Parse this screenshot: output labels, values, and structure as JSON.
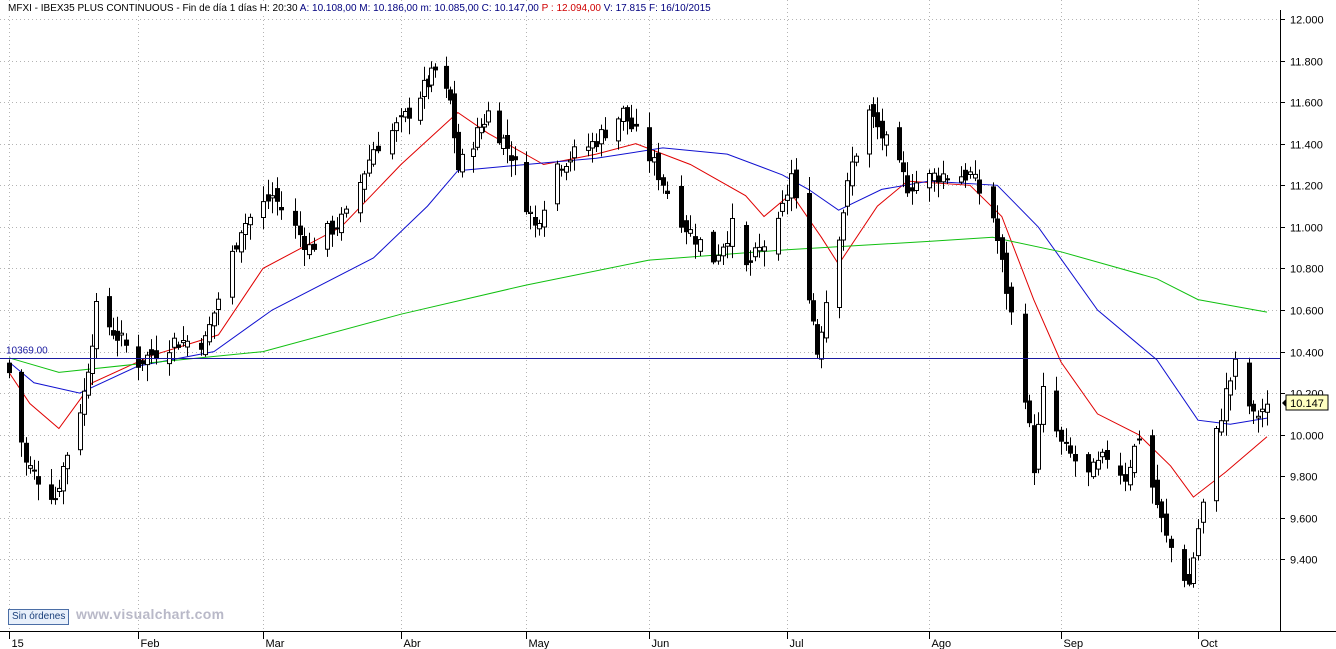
{
  "header": {
    "segments": [
      {
        "text": "MFXI - IBEX35 PLUS CONTINUOUS - Fin de día 1 días",
        "color": "#000000"
      },
      {
        "text": "H: 20:30",
        "color": "#000000"
      },
      {
        "text": "A: 10.108,00",
        "color": "#00007f"
      },
      {
        "text": "M: 10.186,00",
        "color": "#00007f"
      },
      {
        "text": "m: 10.085,00",
        "color": "#00007f"
      },
      {
        "text": "C: 10.147,00",
        "color": "#00007f"
      },
      {
        "text": "P : 12.094,00",
        "color": "#d00000"
      },
      {
        "text": "V: 17.815",
        "color": "#00007f"
      },
      {
        "text": "F: 16/10/2015",
        "color": "#00007f"
      }
    ]
  },
  "orders_button": "Sin órdenes",
  "watermark": "www.visualchart.com",
  "price_tag": "10.147",
  "colors": {
    "candle": "#000000",
    "ma_fast": "#e00000",
    "ma_mid": "#1010d0",
    "ma_slow": "#10c010",
    "hline": "#1a1aa0"
  },
  "chart_data": {
    "type": "candlestick",
    "title": "MFXI - IBEX35 PLUS CONTINUOUS",
    "ylim": [
      9200,
      12000
    ],
    "yticks": [
      "12.000",
      "11.800",
      "11.600",
      "11.400",
      "11.200",
      "11.000",
      "10.800",
      "10.600",
      "10.400",
      "10.200",
      "10.000",
      "9.800",
      "9.600",
      "9.400"
    ],
    "ytick_values": [
      12000,
      11800,
      11600,
      11400,
      11200,
      11000,
      10800,
      10600,
      10400,
      10200,
      10000,
      9800,
      9600,
      9400
    ],
    "xticks": [
      {
        "label": "15",
        "date": "2015-01-02"
      },
      {
        "label": "Feb",
        "date": "2015-02-02"
      },
      {
        "label": "Mar",
        "date": "2015-03-02"
      },
      {
        "label": "Abr",
        "date": "2015-04-01"
      },
      {
        "label": "May",
        "date": "2015-05-04"
      },
      {
        "label": "Jun",
        "date": "2015-06-01"
      },
      {
        "label": "Jul",
        "date": "2015-07-01"
      },
      {
        "label": "Ago",
        "date": "2015-08-03"
      },
      {
        "label": "Sep",
        "date": "2015-09-01"
      },
      {
        "label": "Oct",
        "date": "2015-10-01"
      }
    ],
    "date_range": [
      "2015-01-02",
      "2015-10-16"
    ],
    "horizontal_line": {
      "label": "10369.00",
      "value": 10369
    },
    "last_close": {
      "label": "10.147",
      "value": 10147
    },
    "close_anchors": [
      {
        "date": "2015-01-02",
        "close": 10300
      },
      {
        "date": "2015-01-06",
        "close": 9860
      },
      {
        "date": "2015-01-13",
        "close": 9700
      },
      {
        "date": "2015-01-20",
        "close": 10200
      },
      {
        "date": "2015-01-23",
        "close": 10600
      },
      {
        "date": "2015-02-02",
        "close": 10350
      },
      {
        "date": "2015-02-10",
        "close": 10450
      },
      {
        "date": "2015-02-17",
        "close": 10450
      },
      {
        "date": "2015-02-25",
        "close": 11000
      },
      {
        "date": "2015-03-04",
        "close": 11150
      },
      {
        "date": "2015-03-12",
        "close": 10900
      },
      {
        "date": "2015-03-20",
        "close": 11050
      },
      {
        "date": "2015-03-26",
        "close": 11380
      },
      {
        "date": "2015-04-01",
        "close": 11500
      },
      {
        "date": "2015-04-10",
        "close": 11750
      },
      {
        "date": "2015-04-14",
        "close": 11600
      },
      {
        "date": "2015-04-16",
        "close": 11280
      },
      {
        "date": "2015-04-24",
        "close": 11550
      },
      {
        "date": "2015-04-30",
        "close": 11350
      },
      {
        "date": "2015-05-06",
        "close": 11000
      },
      {
        "date": "2015-05-11",
        "close": 11300
      },
      {
        "date": "2015-05-19",
        "close": 11400
      },
      {
        "date": "2015-05-26",
        "close": 11550
      },
      {
        "date": "2015-06-02",
        "close": 11300
      },
      {
        "date": "2015-06-09",
        "close": 11000
      },
      {
        "date": "2015-06-15",
        "close": 10850
      },
      {
        "date": "2015-06-19",
        "close": 11000
      },
      {
        "date": "2015-06-22",
        "close": 10800
      },
      {
        "date": "2015-06-29",
        "close": 11000
      },
      {
        "date": "2015-07-02",
        "close": 11250
      },
      {
        "date": "2015-07-07",
        "close": 10550
      },
      {
        "date": "2015-07-08",
        "close": 10400
      },
      {
        "date": "2015-07-10",
        "close": 10650
      },
      {
        "date": "2015-07-16",
        "close": 11300
      },
      {
        "date": "2015-07-20",
        "close": 11550
      },
      {
        "date": "2015-07-24",
        "close": 11400
      },
      {
        "date": "2015-07-29",
        "close": 11200
      },
      {
        "date": "2015-08-05",
        "close": 11250
      },
      {
        "date": "2015-08-12",
        "close": 11250
      },
      {
        "date": "2015-08-17",
        "close": 11050
      },
      {
        "date": "2015-08-20",
        "close": 10700
      },
      {
        "date": "2015-08-24",
        "close": 10200
      },
      {
        "date": "2015-08-26",
        "close": 9850
      },
      {
        "date": "2015-08-28",
        "close": 10200
      },
      {
        "date": "2015-09-01",
        "close": 9950
      },
      {
        "date": "2015-09-07",
        "close": 9800
      },
      {
        "date": "2015-09-11",
        "close": 9900
      },
      {
        "date": "2015-09-15",
        "close": 9800
      },
      {
        "date": "2015-09-18",
        "close": 10000
      },
      {
        "date": "2015-09-21",
        "close": 9750
      },
      {
        "date": "2015-09-24",
        "close": 9500
      },
      {
        "date": "2015-09-29",
        "close": 9280
      },
      {
        "date": "2015-10-01",
        "close": 9550
      },
      {
        "date": "2015-10-05",
        "close": 10000
      },
      {
        "date": "2015-10-07",
        "close": 10200
      },
      {
        "date": "2015-10-09",
        "close": 10330
      },
      {
        "date": "2015-10-13",
        "close": 10080
      },
      {
        "date": "2015-10-16",
        "close": 10147
      }
    ],
    "moving_averages": [
      {
        "color_key": "ma_fast",
        "points": [
          {
            "date": "2015-01-02",
            "value": 10300
          },
          {
            "date": "2015-01-07",
            "value": 10150
          },
          {
            "date": "2015-01-14",
            "value": 10030
          },
          {
            "date": "2015-01-22",
            "value": 10250
          },
          {
            "date": "2015-02-05",
            "value": 10380
          },
          {
            "date": "2015-02-20",
            "value": 10480
          },
          {
            "date": "2015-03-02",
            "value": 10800
          },
          {
            "date": "2015-03-19",
            "value": 11000
          },
          {
            "date": "2015-04-01",
            "value": 11300
          },
          {
            "date": "2015-04-16",
            "value": 11550
          },
          {
            "date": "2015-04-24",
            "value": 11450
          },
          {
            "date": "2015-05-08",
            "value": 11300
          },
          {
            "date": "2015-05-20",
            "value": 11350
          },
          {
            "date": "2015-05-29",
            "value": 11400
          },
          {
            "date": "2015-06-10",
            "value": 11300
          },
          {
            "date": "2015-06-22",
            "value": 11150
          },
          {
            "date": "2015-06-26",
            "value": 11050
          },
          {
            "date": "2015-07-02",
            "value": 11160
          },
          {
            "date": "2015-07-09",
            "value": 10950
          },
          {
            "date": "2015-07-13",
            "value": 10820
          },
          {
            "date": "2015-07-22",
            "value": 11100
          },
          {
            "date": "2015-07-29",
            "value": 11220
          },
          {
            "date": "2015-08-12",
            "value": 11200
          },
          {
            "date": "2015-08-19",
            "value": 11050
          },
          {
            "date": "2015-08-26",
            "value": 10650
          },
          {
            "date": "2015-09-01",
            "value": 10350
          },
          {
            "date": "2015-09-09",
            "value": 10100
          },
          {
            "date": "2015-09-18",
            "value": 10000
          },
          {
            "date": "2015-09-25",
            "value": 9850
          },
          {
            "date": "2015-09-30",
            "value": 9700
          },
          {
            "date": "2015-10-07",
            "value": 9820
          },
          {
            "date": "2015-10-16",
            "value": 9990
          }
        ]
      },
      {
        "color_key": "ma_mid",
        "points": [
          {
            "date": "2015-01-02",
            "value": 10350
          },
          {
            "date": "2015-01-08",
            "value": 10250
          },
          {
            "date": "2015-01-19",
            "value": 10200
          },
          {
            "date": "2015-02-02",
            "value": 10330
          },
          {
            "date": "2015-02-19",
            "value": 10400
          },
          {
            "date": "2015-03-04",
            "value": 10600
          },
          {
            "date": "2015-03-26",
            "value": 10850
          },
          {
            "date": "2015-04-08",
            "value": 11100
          },
          {
            "date": "2015-04-16",
            "value": 11270
          },
          {
            "date": "2015-05-04",
            "value": 11300
          },
          {
            "date": "2015-05-20",
            "value": 11330
          },
          {
            "date": "2015-06-04",
            "value": 11380
          },
          {
            "date": "2015-06-18",
            "value": 11350
          },
          {
            "date": "2015-06-30",
            "value": 11250
          },
          {
            "date": "2015-07-06",
            "value": 11180
          },
          {
            "date": "2015-07-13",
            "value": 11080
          },
          {
            "date": "2015-07-23",
            "value": 11180
          },
          {
            "date": "2015-08-03",
            "value": 11220
          },
          {
            "date": "2015-08-18",
            "value": 11200
          },
          {
            "date": "2015-08-27",
            "value": 11000
          },
          {
            "date": "2015-09-09",
            "value": 10600
          },
          {
            "date": "2015-09-22",
            "value": 10360
          },
          {
            "date": "2015-10-01",
            "value": 10070
          },
          {
            "date": "2015-10-08",
            "value": 10050
          },
          {
            "date": "2015-10-16",
            "value": 10080
          }
        ]
      },
      {
        "color_key": "ma_slow",
        "points": [
          {
            "date": "2015-01-02",
            "value": 10370
          },
          {
            "date": "2015-01-14",
            "value": 10300
          },
          {
            "date": "2015-02-02",
            "value": 10340
          },
          {
            "date": "2015-03-02",
            "value": 10400
          },
          {
            "date": "2015-04-01",
            "value": 10580
          },
          {
            "date": "2015-05-04",
            "value": 10720
          },
          {
            "date": "2015-06-01",
            "value": 10840
          },
          {
            "date": "2015-07-01",
            "value": 10890
          },
          {
            "date": "2015-08-03",
            "value": 10930
          },
          {
            "date": "2015-08-17",
            "value": 10950
          },
          {
            "date": "2015-09-01",
            "value": 10880
          },
          {
            "date": "2015-09-22",
            "value": 10750
          },
          {
            "date": "2015-10-01",
            "value": 10650
          },
          {
            "date": "2015-10-16",
            "value": 10590
          }
        ]
      }
    ]
  }
}
